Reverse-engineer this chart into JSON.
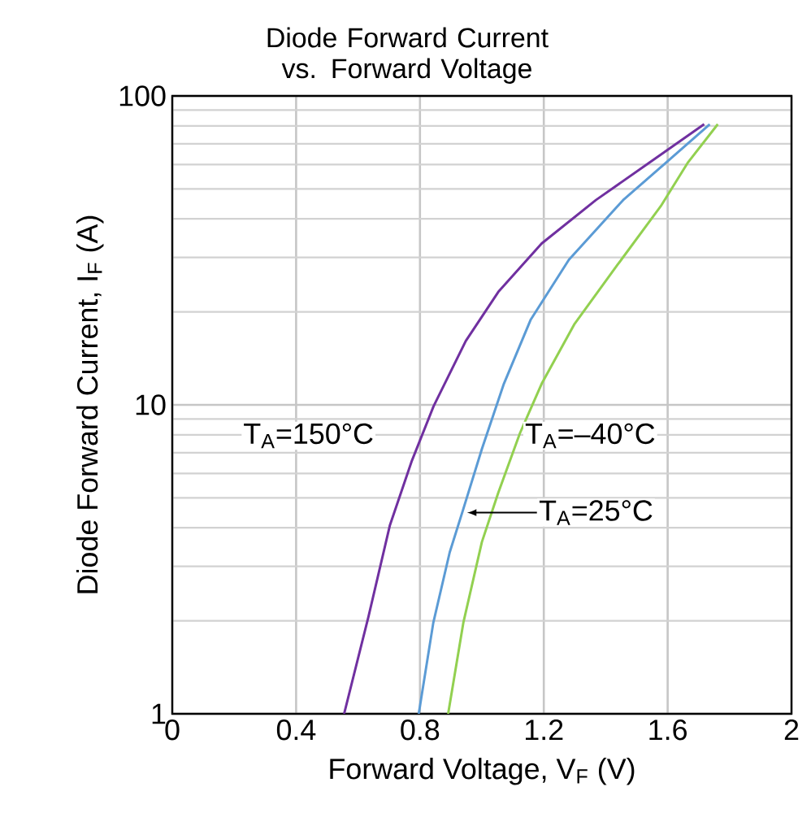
{
  "chart_data": {
    "type": "line",
    "title": "Diode Forward Current vs. Forward Voltage",
    "xlabel": "Forward Voltage, V$_{F}$ (V)",
    "ylabel": "Diode Forward Current, I$_{F}$ (A)",
    "xlim": [
      0,
      2
    ],
    "xticks": [
      0,
      0.4,
      0.8,
      1.2,
      1.6,
      2
    ],
    "ylim": [
      1,
      100
    ],
    "yticks": [
      1,
      10,
      100
    ],
    "log": "y",
    "grid": true,
    "marker": "none",
    "line_style": "solid",
    "series": [
      {
        "color": "#7030a0",
        "x": [
          0.555,
          0.633,
          0.703,
          0.774,
          0.844,
          0.948,
          1.053,
          1.193,
          1.368,
          1.543,
          1.718
        ],
        "values": [
          1,
          2.05,
          4.08,
          6.6,
          9.9,
          16.1,
          23.2,
          33.3,
          46,
          61,
          81
        ]
      },
      {
        "color": "#5b9bd5",
        "x": [
          0.796,
          0.843,
          0.896,
          0.94,
          1.0,
          1.071,
          1.158,
          1.281,
          1.456,
          1.596,
          1.736
        ],
        "values": [
          1,
          1.97,
          3.33,
          4.6,
          7.2,
          11.7,
          18.9,
          29.5,
          46,
          61,
          81
        ]
      },
      {
        "color": "#92d050",
        "x": [
          0.891,
          0.94,
          1.0,
          1.053,
          1.123,
          1.193,
          1.298,
          1.438,
          1.578,
          1.666,
          1.762
        ],
        "values": [
          1,
          1.97,
          3.6,
          5.2,
          8.1,
          11.7,
          18.2,
          28.4,
          44,
          61,
          81
        ]
      }
    ],
    "annotations": [
      "T$_{A}$=150°C",
      "T$_{A}$=–40°C",
      {
        "text": "T$_{A}$=25°C",
        "x": 0.952,
        "y": 4.48
      }
    ]
  }
}
